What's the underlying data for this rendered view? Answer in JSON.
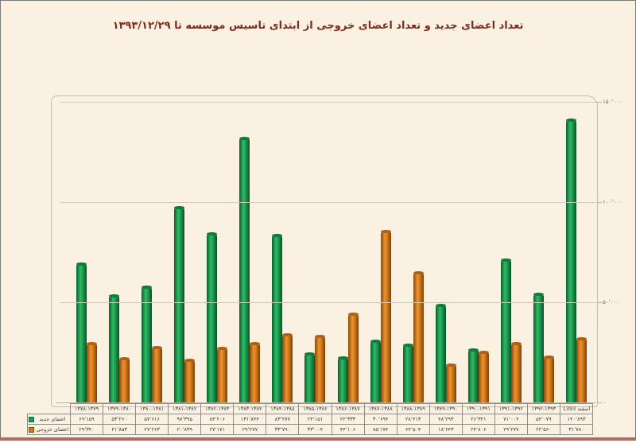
{
  "page": {
    "title": "تعداد اعضای جدید و تعداد اعضای خروجی از ابتدای تاسیس موسسه تا ۱۳۹۳/۱۲/۲۹",
    "title_color": "#7e2c1a",
    "background_color": "#fbf1e2",
    "bottom_rule_color": "#e2574a"
  },
  "chart_data": {
    "type": "bar",
    "title": "تعداد اعضای جدید و تعداد اعضای خروجی از ابتدای تاسیس موسسه تا ۱۳۹۳/۱۲/۲۹",
    "grid": true,
    "legend_position": "table-left",
    "ylim": [
      0,
      150000
    ],
    "yticks": [
      {
        "value": 150000,
        "label": "۱۵۰٬۰۰۰"
      },
      {
        "value": 100000,
        "label": "۱۰۰٬۰۰۰"
      },
      {
        "value": 50000,
        "label": "۵۰٬۰۰۰"
      },
      {
        "value": 0,
        "label": "۰"
      }
    ],
    "categories": [
      "۱۳۷۸-۱۳۷۹",
      "۱۳۷۹-۱۳۸۰",
      "۱۳۸۰-۱۳۸۱",
      "۱۳۸۱-۱۳۸۲",
      "۱۳۸۲-۱۳۸۳",
      "۱۳۸۳-۱۳۸۴",
      "۱۳۸۴-۱۳۸۵",
      "۱۳۸۵-۱۳۸۶",
      "۱۳۸۶-۱۳۸۷",
      "۱۳۸۷-۱۳۸۸",
      "۱۳۸۸-۱۳۸۹",
      "۱۳۸۹-۱۳۹۰",
      "۱۳۹۰-۱۳۹۱",
      "۱۳۹۱-۱۳۹۲",
      "۱۳۹۲-۱۳۹۳",
      "اسفند 1393"
    ],
    "series": [
      {
        "name": "اعضای جدید",
        "color": "#1f9d55",
        "css_class": "green",
        "values": [
          69159,
          53260,
          57616,
          97395,
          84206,
          131844,
          83277,
          24151,
          22333,
          30694,
          28413,
          48293,
          26321,
          71004,
          54079,
          140893
        ],
        "labels": [
          "۶۹٬۱۵۹",
          "۵۳٬۲۶۰",
          "۵۷٬۶۱۶",
          "۹۷٬۳۹۵",
          "۸۴٬۲۰۶",
          "۱۳۱٬۸۴۴",
          "۸۳٬۲۷۷",
          "۲۴٬۱۵۱",
          "۲۲٬۳۳۳",
          "۳۰٬۶۹۴",
          "۲۸٬۴۱۳",
          "۴۸٬۲۹۳",
          "۲۶٬۳۲۱",
          "۷۱٬۰۰۴",
          "۵۴٬۰۷۹",
          "۱۴۰٬۸۹۳"
        ]
      },
      {
        "name": "اعضای خروجی",
        "color": "#d07818",
        "css_class": "orange",
        "values": [
          29340,
          21853,
          27263,
          20839,
          27171,
          29277,
          33790,
          33004,
          44106,
          85174,
          64504,
          18643,
          24806,
          29277,
          22560,
          31780
        ],
        "labels": [
          "۲۹٬۳۴۰",
          "۲۱٬۸۵۳",
          "۲۷٬۲۶۳",
          "۲۰٬۸۳۹",
          "۲۷٬۱۷۱",
          "۲۹٬۲۷۷",
          "۳۳٬۷۹۰",
          "۳۳٬۰۰۴",
          "۴۴٬۱۰۶",
          "۸۵٬۱۷۴",
          "۶۴٬۵۰۴",
          "۱۸٬۶۴۳",
          "۲۴٬۸۰۶",
          "۲۹٬۲۷۷",
          "۲۲٬۵۶۰",
          "۳۱٬۷۸۰"
        ]
      }
    ]
  }
}
